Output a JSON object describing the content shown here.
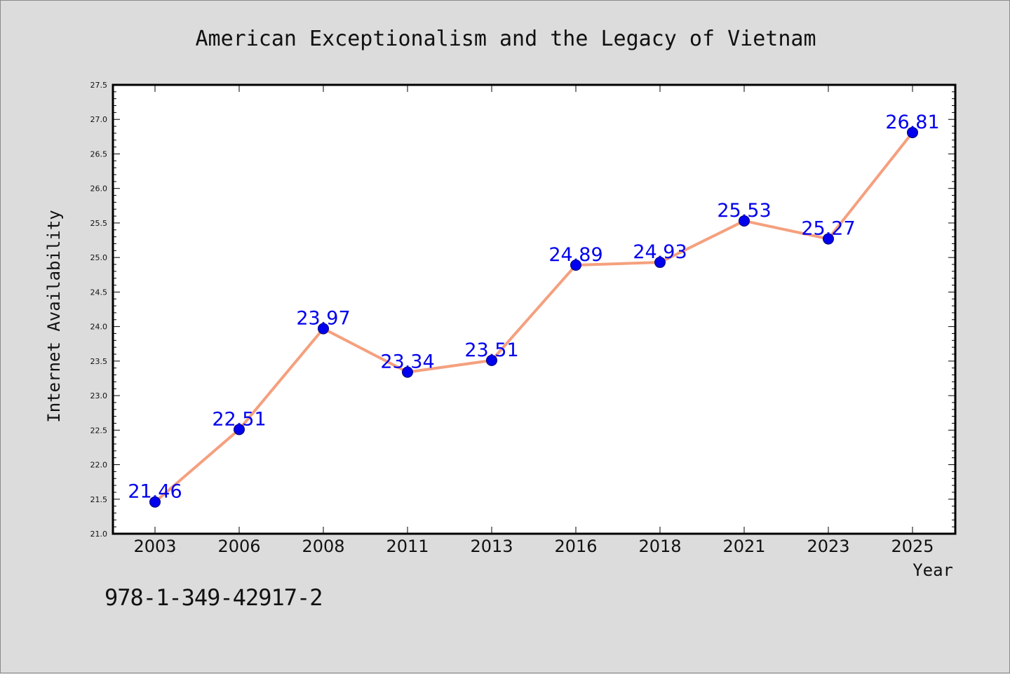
{
  "footer": {
    "isbn": "978-1-349-42917-2"
  },
  "chart_data": {
    "type": "line",
    "title": "American Exceptionalism and the Legacy of Vietnam",
    "xlabel": "Year",
    "ylabel": "Internet Availability",
    "categories": [
      "2003",
      "2006",
      "2008",
      "2011",
      "2013",
      "2016",
      "2018",
      "2021",
      "2023",
      "2025"
    ],
    "values": [
      21.46,
      22.51,
      23.97,
      23.34,
      23.51,
      24.89,
      24.93,
      25.53,
      25.27,
      26.81
    ],
    "data_labels": [
      "21.46",
      "22.51",
      "23.97",
      "23.34",
      "23.51",
      "24.89",
      "24.93",
      "25.53",
      "25.27",
      "26.81"
    ],
    "ylim": [
      21.0,
      27.5
    ],
    "yticks": [
      "21.0",
      "21.5",
      "22.0",
      "22.5",
      "23.0",
      "23.5",
      "24.0",
      "24.5",
      "25.0",
      "25.5",
      "26.0",
      "26.5",
      "27.0",
      "27.5"
    ],
    "grid": false,
    "legend": "none",
    "colors": {
      "line": "#f5a07e",
      "marker": "#0000ee",
      "marker_edge": "#00006e",
      "label": "#0000ee"
    }
  }
}
